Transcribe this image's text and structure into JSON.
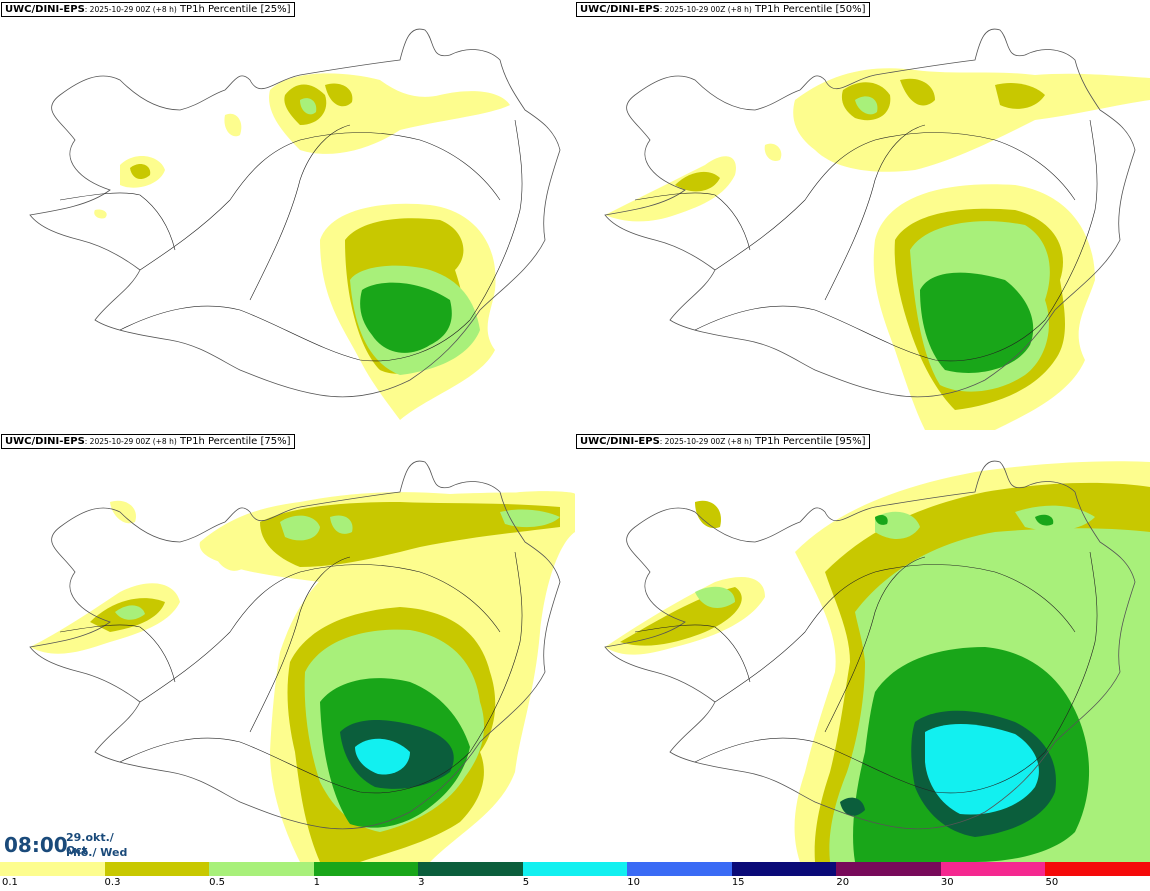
{
  "panels": [
    {
      "model": "UWC/DINI-EPS",
      "run": ": 2025-10-29 00Z (+8 h)",
      "field": " TP1h Percentile [25%]"
    },
    {
      "model": "UWC/DINI-EPS",
      "run": ": 2025-10-29 00Z (+8 h)",
      "field": " TP1h Percentile [50%]"
    },
    {
      "model": "UWC/DINI-EPS",
      "run": ": 2025-10-29 00Z (+8 h)",
      "field": " TP1h Percentile [75%]"
    },
    {
      "model": "UWC/DINI-EPS",
      "run": ": 2025-10-29 00Z (+8 h)",
      "field": " TP1h Percentile [95%]"
    }
  ],
  "time": {
    "hour": "08:00",
    "date_line1": "29.okt./ Oct",
    "date_line2": "Mið./ Wed"
  },
  "legend": {
    "colors": [
      "#fdfd8e",
      "#c8c800",
      "#a8f07a",
      "#19a619",
      "#0b5e3c",
      "#12f0f0",
      "#3a6bf5",
      "#0a0a78",
      "#780a5a",
      "#f52890",
      "#f50a0a"
    ],
    "ticks": [
      "0.1",
      "0.3",
      "0.5",
      "1",
      "3",
      "5",
      "10",
      "15",
      "20",
      "30",
      "50"
    ]
  },
  "style": {
    "land_outline": "#555555",
    "roads": "#222222"
  }
}
